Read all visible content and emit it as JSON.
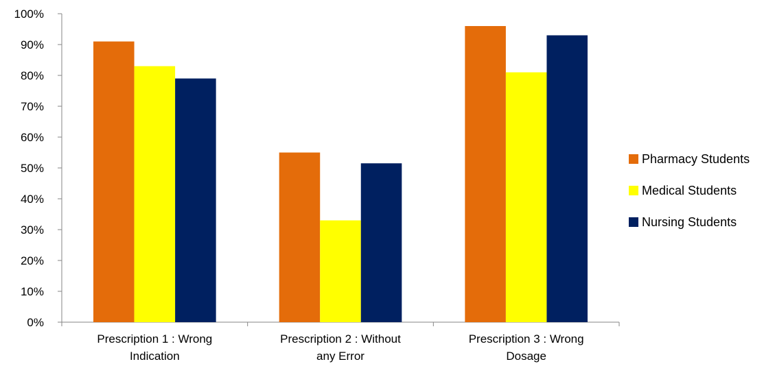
{
  "chart_data": {
    "type": "bar",
    "categories": [
      [
        "Prescription 1 : Wrong",
        "Indication"
      ],
      [
        "Prescription 2 : Without",
        "any Error"
      ],
      [
        "Prescription 3 : Wrong",
        "Dosage"
      ]
    ],
    "series": [
      {
        "name": "Pharmacy Students",
        "values": [
          91,
          55,
          96
        ],
        "color": "#E46C0A"
      },
      {
        "name": "Medical Students",
        "values": [
          83,
          33,
          81
        ],
        "color": "#FFFF00"
      },
      {
        "name": "Nursing Students",
        "values": [
          79,
          51.5,
          93
        ],
        "color": "#002060"
      }
    ],
    "yticks": [
      "0%",
      "10%",
      "20%",
      "30%",
      "40%",
      "50%",
      "60%",
      "70%",
      "80%",
      "90%",
      "100%"
    ],
    "ylim": [
      0,
      100
    ],
    "grid": false,
    "legend": "right"
  }
}
